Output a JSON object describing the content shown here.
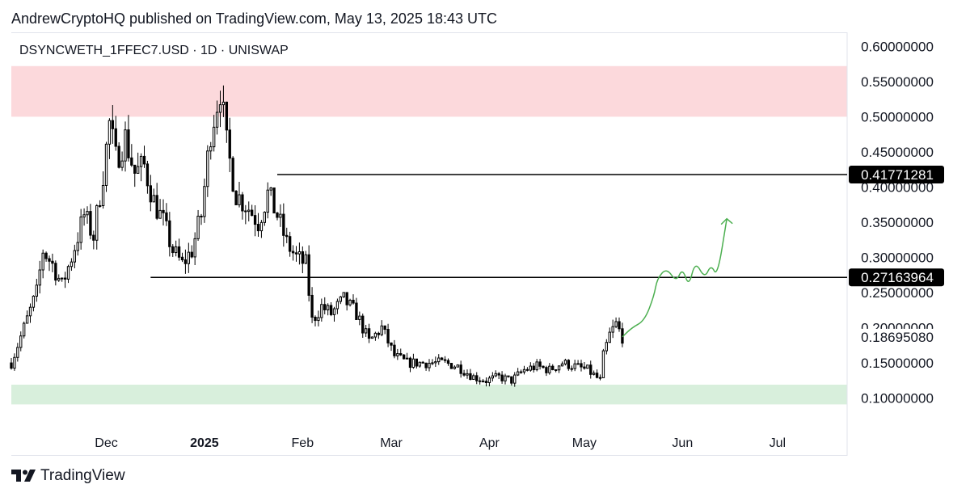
{
  "header": {
    "published": "AndrewCryptoHQ published on TradingView.com, May 13, 2025 18:43 UTC"
  },
  "symbol": {
    "title": "DSYNCWETH_1FFEC7.USD · 1D · UNISWAP"
  },
  "footer": {
    "brand": "TradingView",
    "logo_icon": "tradingview-logo-icon"
  },
  "colors": {
    "candle": "#000000",
    "resistance_zone": "#fcd9dc",
    "support_zone": "#d8efdc",
    "projection": "#4caf50",
    "level_line": "#000000",
    "tag_bg": "#000000",
    "tag_text": "#ffffff"
  },
  "chart_data": {
    "type": "candlestick",
    "title": "DSYNCWETH_1FFEC7.USD · 1D · UNISWAP",
    "x_tick_labels": [
      "Dec",
      "2025",
      "Feb",
      "Mar",
      "Apr",
      "May",
      "Jun",
      "Jul"
    ],
    "x_tick_dates": [
      "2024-12-01",
      "2025-01-01",
      "2025-02-01",
      "2025-03-01",
      "2025-04-01",
      "2025-05-01",
      "2025-06-01",
      "2025-07-01"
    ],
    "y_tick_labels": [
      "0.60000000",
      "0.55000000",
      "0.50000000",
      "0.45000000",
      "0.40000000",
      "0.35000000",
      "0.30000000",
      "0.25000000",
      "0.20000000",
      "0.15000000",
      "0.10000000"
    ],
    "y_ticks": [
      0.6,
      0.55,
      0.5,
      0.45,
      0.4,
      0.35,
      0.3,
      0.25,
      0.2,
      0.15,
      0.1
    ],
    "ylim": [
      0.057,
      0.62
    ],
    "xlim": [
      "2024-11-01",
      "2025-07-23"
    ],
    "horizontal_levels": [
      {
        "label": "0.41771281",
        "value": 0.41771281,
        "start": "2025-01-24"
      },
      {
        "label": "0.27163964",
        "value": 0.27163964,
        "start": "2024-12-15"
      }
    ],
    "current_price": {
      "label": "0.18695080",
      "value": 0.1869508
    },
    "zones": [
      {
        "type": "resistance",
        "from": 0.5,
        "to": 0.572
      },
      {
        "type": "support",
        "from": 0.091,
        "to": 0.119
      }
    ],
    "close_path": [
      [
        "2024-11-01",
        0.15
      ],
      [
        "2024-11-05",
        0.2
      ],
      [
        "2024-11-09",
        0.25
      ],
      [
        "2024-11-11",
        0.31
      ],
      [
        "2024-11-14",
        0.29
      ],
      [
        "2024-11-17",
        0.26
      ],
      [
        "2024-11-20",
        0.3
      ],
      [
        "2024-11-24",
        0.36
      ],
      [
        "2024-11-27",
        0.33
      ],
      [
        "2024-11-30",
        0.42
      ],
      [
        "2024-12-02",
        0.49
      ],
      [
        "2024-12-04",
        0.44
      ],
      [
        "2024-12-07",
        0.47
      ],
      [
        "2024-12-10",
        0.42
      ],
      [
        "2024-12-13",
        0.43
      ],
      [
        "2024-12-16",
        0.38
      ],
      [
        "2024-12-19",
        0.35
      ],
      [
        "2024-12-22",
        0.31
      ],
      [
        "2024-12-25",
        0.29
      ],
      [
        "2024-12-28",
        0.31
      ],
      [
        "2024-12-31",
        0.36
      ],
      [
        "2025-01-03",
        0.48
      ],
      [
        "2025-01-06",
        0.54
      ],
      [
        "2025-01-08",
        0.46
      ],
      [
        "2025-01-11",
        0.39
      ],
      [
        "2025-01-15",
        0.37
      ],
      [
        "2025-01-18",
        0.35
      ],
      [
        "2025-01-21",
        0.39
      ],
      [
        "2025-01-24",
        0.36
      ],
      [
        "2025-01-27",
        0.32
      ],
      [
        "2025-01-30",
        0.3
      ],
      [
        "2025-02-02",
        0.29
      ],
      [
        "2025-02-04",
        0.21
      ],
      [
        "2025-02-07",
        0.23
      ],
      [
        "2025-02-10",
        0.22
      ],
      [
        "2025-02-14",
        0.24
      ],
      [
        "2025-02-18",
        0.22
      ],
      [
        "2025-02-22",
        0.18
      ],
      [
        "2025-02-26",
        0.2
      ],
      [
        "2025-03-02",
        0.16
      ],
      [
        "2025-03-06",
        0.15
      ],
      [
        "2025-03-10",
        0.15
      ],
      [
        "2025-03-14",
        0.15
      ],
      [
        "2025-03-18",
        0.15
      ],
      [
        "2025-03-22",
        0.145
      ],
      [
        "2025-03-27",
        0.13
      ],
      [
        "2025-03-31",
        0.125
      ],
      [
        "2025-04-04",
        0.13
      ],
      [
        "2025-04-08",
        0.125
      ],
      [
        "2025-04-12",
        0.14
      ],
      [
        "2025-04-16",
        0.145
      ],
      [
        "2025-04-20",
        0.14
      ],
      [
        "2025-04-24",
        0.15
      ],
      [
        "2025-04-28",
        0.145
      ],
      [
        "2025-05-02",
        0.14
      ],
      [
        "2025-05-06",
        0.125
      ],
      [
        "2025-05-07",
        0.16
      ],
      [
        "2025-05-09",
        0.19
      ],
      [
        "2025-05-11",
        0.205
      ],
      [
        "2025-05-13",
        0.187
      ]
    ],
    "projection_path": [
      [
        "2025-05-13",
        0.187
      ],
      [
        "2025-05-16",
        0.2
      ],
      [
        "2025-05-20",
        0.21
      ],
      [
        "2025-05-23",
        0.245
      ],
      [
        "2025-05-24",
        0.27
      ],
      [
        "2025-05-27",
        0.285
      ],
      [
        "2025-05-30",
        0.265
      ],
      [
        "2025-06-01",
        0.285
      ],
      [
        "2025-06-03",
        0.258
      ],
      [
        "2025-06-05",
        0.295
      ],
      [
        "2025-06-08",
        0.27
      ],
      [
        "2025-06-10",
        0.29
      ],
      [
        "2025-06-12",
        0.272
      ],
      [
        "2025-06-15",
        0.355
      ]
    ]
  }
}
